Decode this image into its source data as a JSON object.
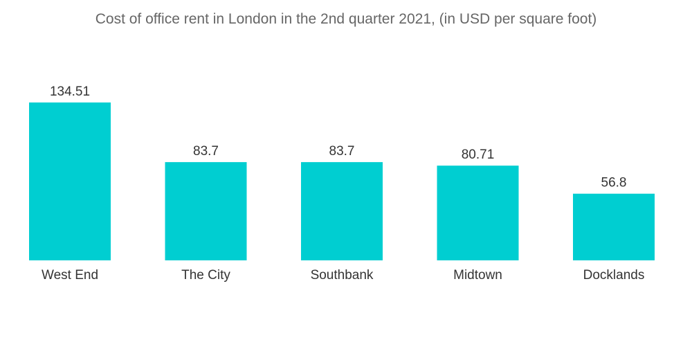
{
  "chart_data": {
    "type": "bar",
    "title": "Cost of office rent in London in the 2nd quarter 2021, (in USD per square foot)",
    "categories": [
      "West End",
      "The City",
      "Southbank",
      "Midtown",
      "Docklands"
    ],
    "values": [
      134.51,
      83.7,
      83.7,
      80.71,
      56.8
    ],
    "value_labels": [
      "134.51",
      "83.7",
      "83.7",
      "80.71",
      "56.8"
    ],
    "xlabel": "",
    "ylabel": "",
    "ylim": [
      0,
      134.51
    ],
    "grid": false,
    "legend": "none",
    "bar_color": "#00CED1"
  }
}
